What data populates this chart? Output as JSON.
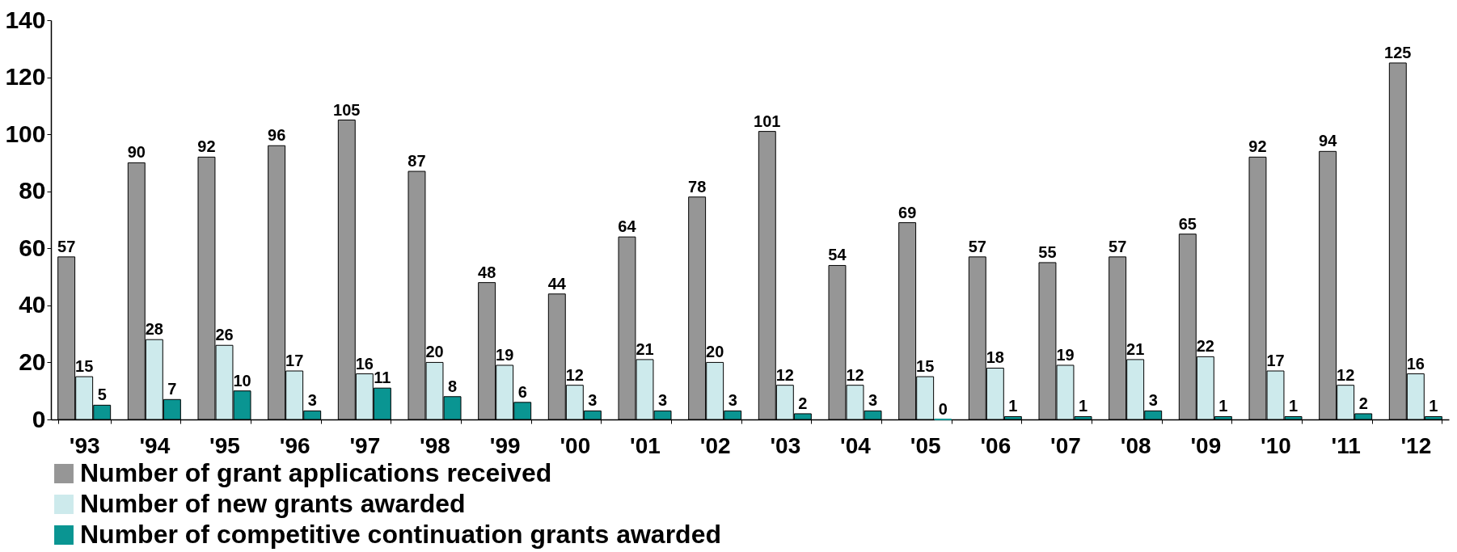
{
  "chart_data": {
    "type": "bar",
    "categories": [
      "'93",
      "'94",
      "'95",
      "'96",
      "'97",
      "'98",
      "'99",
      "'00",
      "'01",
      "'02",
      "'03",
      "'04",
      "'05",
      "'06",
      "'07",
      "'08",
      "'09",
      "'10",
      "'11",
      "'12"
    ],
    "series": [
      {
        "name": "Number of grant applications received",
        "color": "#969696",
        "values": [
          57,
          90,
          92,
          96,
          105,
          87,
          48,
          44,
          64,
          78,
          101,
          54,
          69,
          57,
          55,
          57,
          65,
          92,
          94,
          125
        ]
      },
      {
        "name": "Number of new grants awarded",
        "color": "#cdeaec",
        "values": [
          15,
          28,
          26,
          17,
          16,
          20,
          19,
          12,
          21,
          20,
          12,
          12,
          15,
          18,
          19,
          21,
          22,
          17,
          12,
          16
        ]
      },
      {
        "name": "Number of competitive continuation grants awarded",
        "color": "#0a9592",
        "values": [
          5,
          7,
          10,
          3,
          11,
          8,
          6,
          3,
          3,
          3,
          2,
          3,
          0,
          1,
          1,
          3,
          1,
          1,
          2,
          1
        ]
      }
    ],
    "ylim": [
      0,
      140
    ],
    "yticks": [
      0,
      20,
      40,
      60,
      80,
      100,
      120,
      140
    ],
    "data_labels": true,
    "grid": false,
    "legend": "bottom"
  }
}
